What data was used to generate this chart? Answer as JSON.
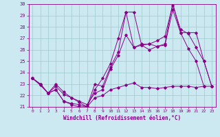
{
  "xlabel": "Windchill (Refroidissement éolien,°C)",
  "bg_color": "#cce8f0",
  "line_color": "#880088",
  "grid_color": "#99cccc",
  "xlim": [
    -0.5,
    23.5
  ],
  "ylim": [
    21,
    30
  ],
  "yticks": [
    21,
    22,
    23,
    24,
    25,
    26,
    27,
    28,
    29,
    30
  ],
  "xticks": [
    0,
    1,
    2,
    3,
    4,
    5,
    6,
    7,
    8,
    9,
    10,
    11,
    12,
    13,
    14,
    15,
    16,
    17,
    18,
    19,
    20,
    21,
    22,
    23
  ],
  "series": [
    {
      "x": [
        0,
        1,
        2,
        3,
        4,
        5,
        6,
        7,
        8,
        9,
        10,
        11,
        12,
        13,
        14,
        15,
        16,
        17,
        18,
        19,
        20,
        21,
        22
      ],
      "y": [
        23.5,
        23.0,
        22.2,
        22.5,
        21.5,
        21.2,
        21.0,
        21.0,
        22.5,
        23.5,
        24.8,
        27.0,
        29.3,
        29.3,
        26.4,
        26.5,
        26.3,
        26.5,
        30.1,
        27.5,
        26.1,
        25.0,
        22.8
      ]
    },
    {
      "x": [
        0,
        1,
        2,
        3,
        4,
        5,
        6,
        7,
        8,
        9,
        10,
        11,
        12,
        13,
        14,
        15,
        16,
        17,
        18,
        19,
        20,
        21,
        22,
        23
      ],
      "y": [
        23.5,
        23.0,
        22.2,
        22.5,
        21.5,
        21.3,
        21.2,
        21.0,
        23.0,
        22.8,
        24.5,
        25.8,
        29.3,
        26.2,
        26.4,
        26.0,
        26.3,
        26.4,
        29.5,
        27.5,
        27.5,
        27.5,
        25.0,
        22.8
      ]
    },
    {
      "x": [
        0,
        1,
        2,
        3,
        4,
        5,
        6,
        7,
        8,
        9,
        10,
        11,
        12,
        13,
        14,
        15,
        16,
        17,
        18,
        19,
        20,
        21,
        22,
        23
      ],
      "y": [
        23.5,
        23.0,
        22.2,
        23.0,
        22.3,
        21.8,
        21.5,
        21.2,
        22.2,
        22.5,
        24.3,
        25.5,
        27.3,
        26.2,
        26.5,
        26.5,
        26.8,
        27.2,
        29.9,
        27.8,
        27.4,
        26.2,
        25.0,
        22.8
      ]
    },
    {
      "x": [
        0,
        1,
        2,
        3,
        4,
        5,
        6,
        7,
        8,
        9,
        10,
        11,
        12,
        13,
        14,
        15,
        16,
        17,
        18,
        19,
        20,
        21,
        22,
        23
      ],
      "y": [
        23.5,
        22.9,
        22.2,
        22.8,
        22.1,
        21.8,
        21.4,
        21.0,
        21.8,
        22.0,
        22.5,
        22.7,
        22.9,
        23.1,
        22.7,
        22.7,
        22.6,
        22.7,
        22.8,
        22.8,
        22.8,
        22.7,
        22.8,
        22.8
      ]
    }
  ]
}
